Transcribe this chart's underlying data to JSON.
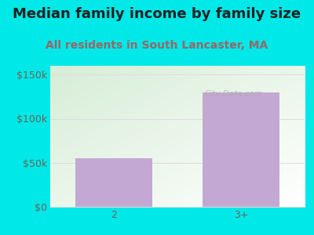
{
  "title": "Median family income by family size",
  "subtitle": "All residents in South Lancaster, MA",
  "categories": [
    "2",
    "3+"
  ],
  "values": [
    55000,
    130000
  ],
  "bar_color": "#c4a8d4",
  "outer_bg": "#00e8e8",
  "plot_bg_topleft": "#d6edd6",
  "plot_bg_bottomright": "#f8fff8",
  "title_color": "#222222",
  "subtitle_color": "#996666",
  "tick_label_color": "#666655",
  "ylim": [
    0,
    160000
  ],
  "yticks": [
    0,
    50000,
    100000,
    150000
  ],
  "ytick_labels": [
    "$0",
    "$50k",
    "$100k",
    "$150k"
  ],
  "title_fontsize": 13,
  "subtitle_fontsize": 10,
  "tick_fontsize": 9,
  "grid_color": "#dddddd",
  "watermark": "City-Data.com"
}
